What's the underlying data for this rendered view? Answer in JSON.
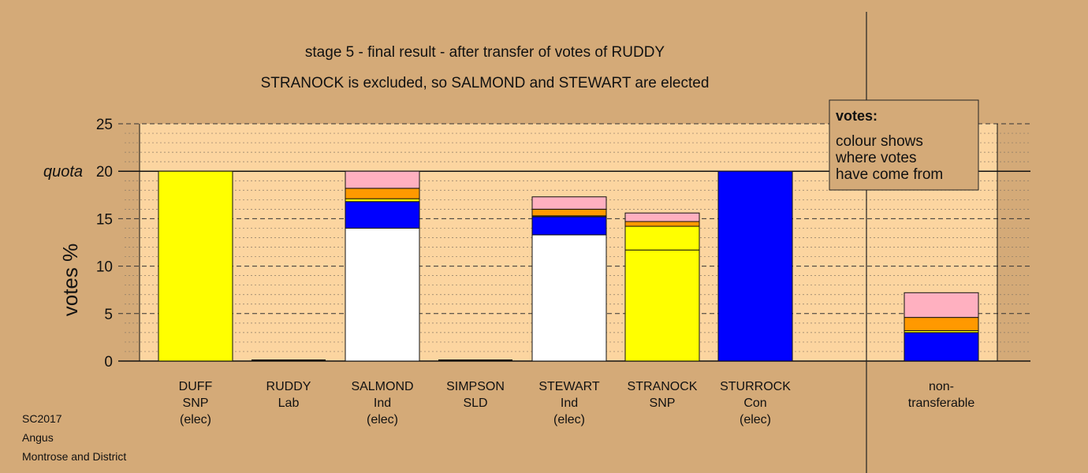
{
  "chart_data": {
    "type": "bar",
    "stacked": true,
    "title": "stage 5 - final result - after transfer of votes of RUDDY",
    "subtitle": "STRANOCK is excluded, so SALMOND and STEWART are elected",
    "ylabel": "votes %",
    "ylim": [
      0,
      25
    ],
    "yticks": [
      0,
      5,
      10,
      15,
      20,
      25
    ],
    "quota": {
      "label": "quota",
      "value": 20
    },
    "grid": true,
    "categories": [
      {
        "name": "DUFF",
        "party": "SNP",
        "status": "(elec)"
      },
      {
        "name": "RUDDY",
        "party": "Lab",
        "status": ""
      },
      {
        "name": "SALMOND",
        "party": "Ind",
        "status": "(elec)"
      },
      {
        "name": "SIMPSON",
        "party": "SLD",
        "status": ""
      },
      {
        "name": "STEWART",
        "party": "Ind",
        "status": "(elec)"
      },
      {
        "name": "STRANOCK",
        "party": "SNP",
        "status": ""
      },
      {
        "name": "STURROCK",
        "party": "Con",
        "status": "(elec)"
      },
      {
        "name": "non-",
        "party": "transferable",
        "status": ""
      }
    ],
    "segments": [
      [
        {
          "color": "#ffff00",
          "value": 20.0
        }
      ],
      [],
      [
        {
          "color": "#ffffff",
          "value": 14.0
        },
        {
          "color": "#0000ff",
          "value": 2.8
        },
        {
          "color": "#ffff00",
          "value": 0.3
        },
        {
          "color": "#ff9900",
          "value": 1.1
        },
        {
          "color": "#ffb0c0",
          "value": 1.8
        }
      ],
      [],
      [
        {
          "color": "#ffffff",
          "value": 13.3
        },
        {
          "color": "#0000ff",
          "value": 1.9
        },
        {
          "color": "#ffff00",
          "value": 0.1
        },
        {
          "color": "#ff9900",
          "value": 0.7
        },
        {
          "color": "#ffb0c0",
          "value": 1.3
        }
      ],
      [
        {
          "color": "#ffff00",
          "value": 11.7
        },
        {
          "color": "#ffff00",
          "value": 2.5
        },
        {
          "color": "#ff9900",
          "value": 0.5
        },
        {
          "color": "#ffb0c0",
          "value": 0.9
        }
      ],
      [
        {
          "color": "#0000ff",
          "value": 20.0
        }
      ],
      [
        {
          "color": "#0000ff",
          "value": 3.0
        },
        {
          "color": "#ffff00",
          "value": 0.2
        },
        {
          "color": "#ff9900",
          "value": 1.4
        },
        {
          "color": "#ffb0c0",
          "value": 2.6
        }
      ]
    ]
  },
  "legend": {
    "title": "votes:",
    "lines": [
      "colour shows",
      "where votes",
      "have come from"
    ]
  },
  "footer": [
    "SC2017",
    "Angus",
    "Montrose and District"
  ],
  "colors": {
    "background": "#d4aa78",
    "plot": "#fcd5a0"
  }
}
